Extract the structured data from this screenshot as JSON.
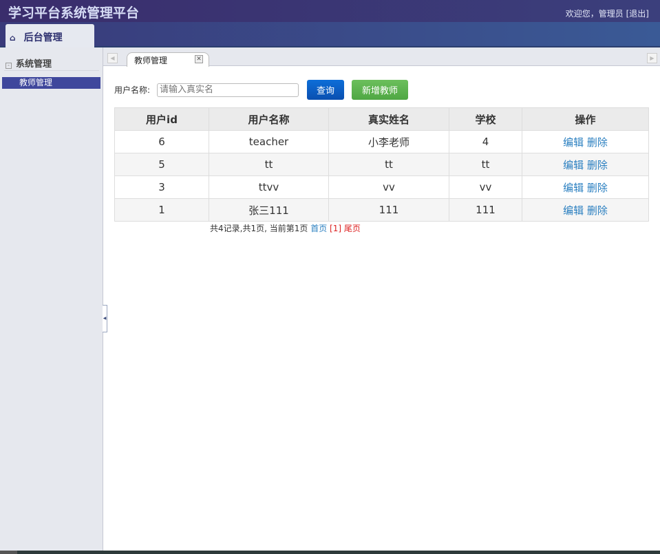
{
  "header": {
    "title": "学习平台系统管理平台",
    "welcome": "欢迎您，管理员",
    "logout": "[退出]"
  },
  "nav": {
    "tab": "后台管理",
    "icon": "home-icon"
  },
  "sidebar": {
    "group": "系统管理",
    "items": [
      {
        "label": "教师管理"
      }
    ]
  },
  "tabs": [
    {
      "label": "教师管理"
    }
  ],
  "search": {
    "label": "用户名称:",
    "placeholder": "请输入真实名",
    "value": "",
    "query": "查询",
    "add": "新增教师"
  },
  "table": {
    "headers": [
      "用户id",
      "用户名称",
      "真实姓名",
      "学校",
      "操作"
    ],
    "rows": [
      [
        "6",
        "teacher",
        "小李老师",
        "4"
      ],
      [
        "5",
        "tt",
        "tt",
        "tt"
      ],
      [
        "3",
        "ttvv",
        "vv",
        "vv"
      ],
      [
        "1",
        "张三111",
        "111",
        "111"
      ]
    ],
    "edit": "编辑",
    "delete": "删除"
  },
  "pager": {
    "summary": "共4记录,共1页, 当前第1页",
    "first": "首页",
    "current": "[1]",
    "last": "尾页"
  },
  "colors": {
    "query": "#0a5fc4",
    "add": "#5cb34e",
    "sidebar_active": "#3f479c"
  }
}
